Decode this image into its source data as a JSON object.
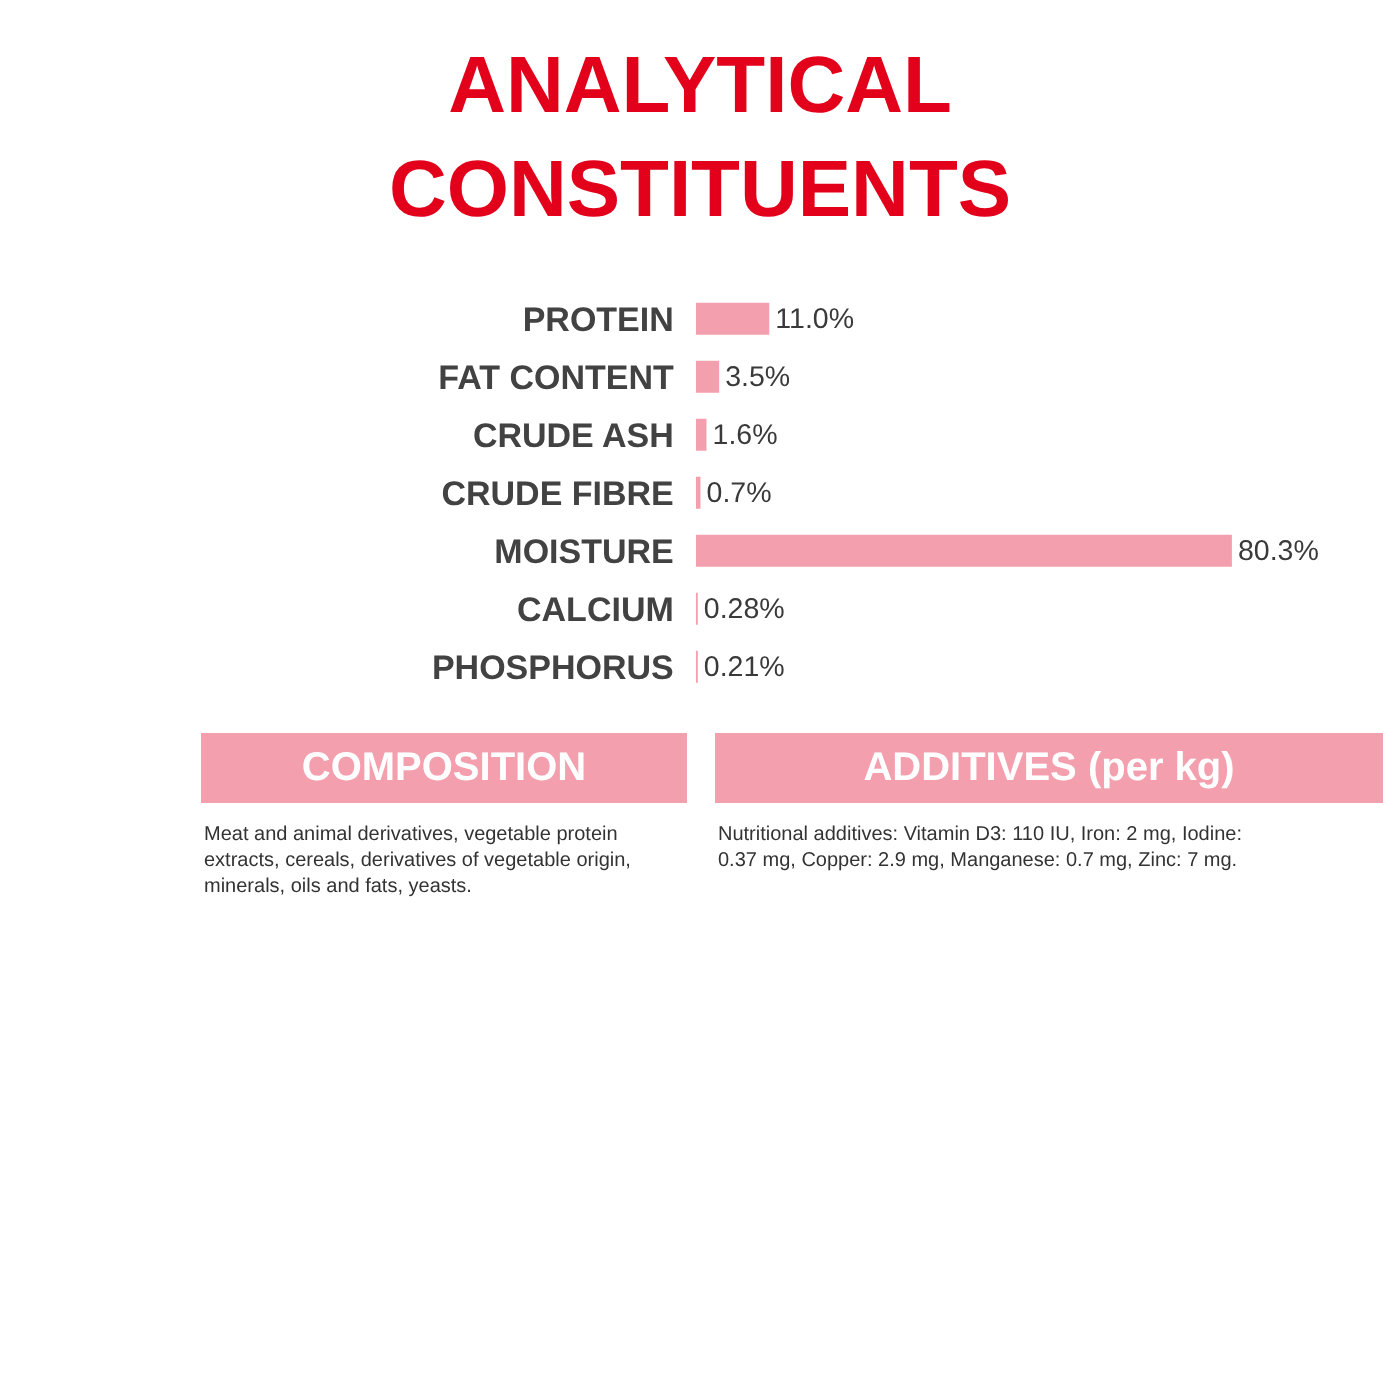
{
  "chart_data": {
    "type": "bar",
    "orientation": "horizontal",
    "title": "ANALYTICAL CONSTITUENTS",
    "categories": [
      "PROTEIN",
      "FAT CONTENT",
      "CRUDE ASH",
      "CRUDE FIBRE",
      "MOISTURE",
      "CALCIUM",
      "PHOSPHORUS"
    ],
    "values": [
      11.0,
      3.5,
      1.6,
      0.7,
      80.3,
      0.28,
      0.21
    ],
    "value_labels": [
      "11.0%",
      "3.5%",
      "1.6%",
      "0.7%",
      "80.3%",
      "0.28%",
      "0.21%"
    ],
    "color": "#f49fad",
    "annotations": [
      "COMPOSITION",
      "Meat and animal derivatives, vegetable protein extracts, cereals, derivatives of vegetable origin, minerals, oils and fats, yeasts.",
      "ADDITIVES (per kg)",
      "Nutritional additives: Vitamin D3: 110 IU, Iron: 2 mg, Iodine: 0.37 mg, Copper: 2.9 mg, Manganese: 0.7 mg, Zinc: 7 mg."
    ]
  }
}
